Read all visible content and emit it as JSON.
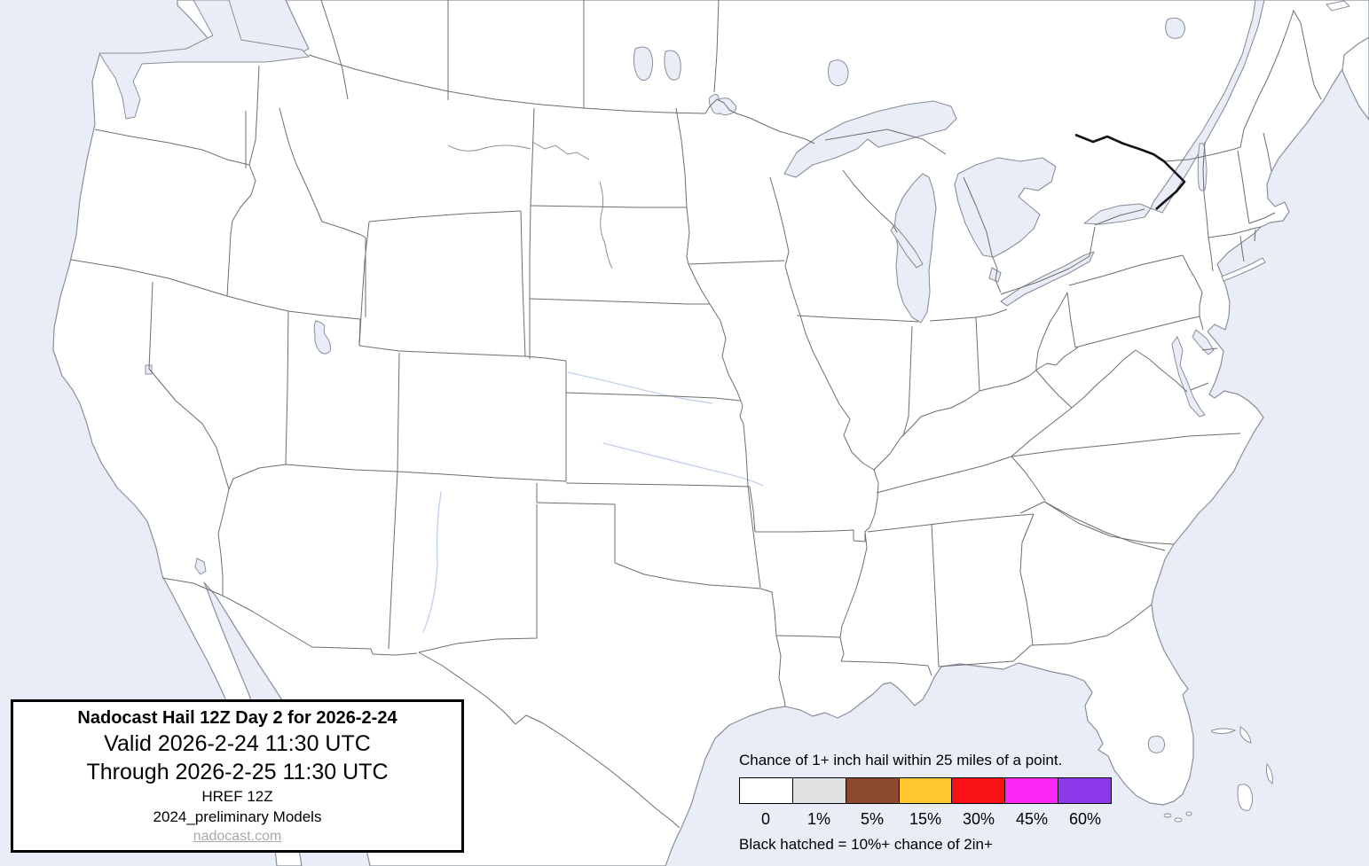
{
  "title_box": {
    "title": "Nadocast Hail 12Z Day 2 for 2026-2-24",
    "valid_line": "Valid 2026-2-24 11:30 UTC",
    "through_line": "Through 2026-2-25 11:30 UTC",
    "model_line": "HREF 12Z",
    "models_note": "2024_preliminary Models",
    "site_link": "nadocast.com"
  },
  "legend": {
    "title": "Chance of 1+ inch hail within 25 miles of a point.",
    "footnote": "Black hatched = 10%+ chance of 2in+",
    "swatches": [
      {
        "label": "0",
        "color": "#ffffff"
      },
      {
        "label": "1%",
        "color": "#e2e2e2"
      },
      {
        "label": "5%",
        "color": "#8b4a2b"
      },
      {
        "label": "15%",
        "color": "#ffc62e"
      },
      {
        "label": "30%",
        "color": "#fa1116"
      },
      {
        "label": "45%",
        "color": "#fd25f3"
      },
      {
        "label": "60%",
        "color": "#8d38e9"
      }
    ]
  },
  "map_colors": {
    "ocean": "#e8edf8",
    "lakes": "#e8edf8",
    "land": "#ffffff",
    "coastline": "#8a8f98",
    "state_border": "#6d6d6d",
    "international_border": "#141414",
    "river": "#c3d2ec"
  }
}
